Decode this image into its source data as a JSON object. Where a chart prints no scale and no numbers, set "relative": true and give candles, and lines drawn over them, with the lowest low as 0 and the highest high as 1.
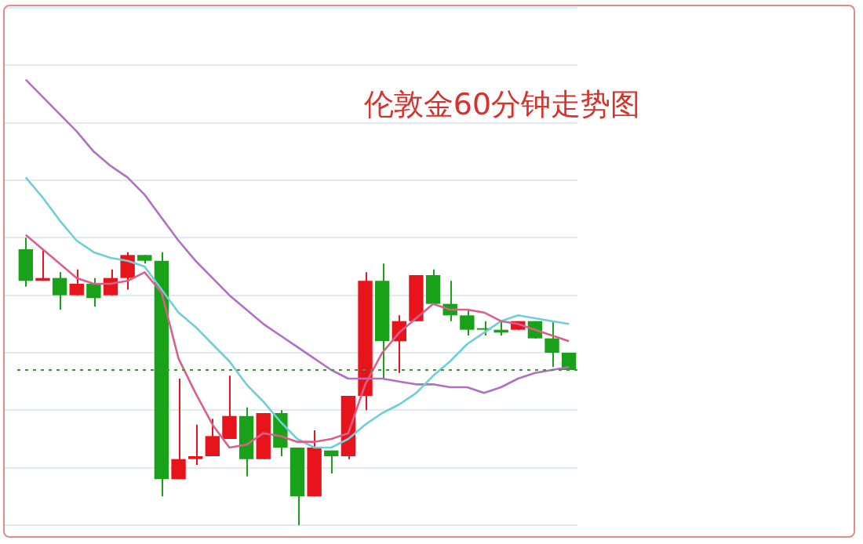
{
  "chart_data": {
    "type": "candlestick",
    "title": "伦敦金60分钟走势图",
    "relative": true,
    "grid": "y",
    "categories": [
      null,
      null,
      null,
      null,
      null,
      null,
      null,
      null,
      null,
      null,
      null,
      null,
      null,
      null,
      null,
      null,
      null,
      null,
      null,
      null,
      null,
      null,
      null,
      null,
      null,
      null,
      null,
      null,
      null,
      null,
      null,
      null,
      null
    ],
    "ohlc": [
      [
        0.96,
        1,
        0.83,
        0.85
      ],
      [
        0.85,
        0.96,
        0.85,
        0.86
      ],
      [
        0.86,
        0.88,
        0.75,
        0.8
      ],
      [
        0.8,
        0.89,
        0.8,
        0.84
      ],
      [
        0.84,
        0.86,
        0.76,
        0.79
      ],
      [
        0.8,
        0.89,
        0.8,
        0.86
      ],
      [
        0.86,
        0.95,
        0.82,
        0.94
      ],
      [
        0.94,
        0.94,
        0.91,
        0.92
      ],
      [
        0.92,
        0.95,
        0.1,
        0.16
      ],
      [
        0.16,
        0.51,
        0.16,
        0.23
      ],
      [
        0.23,
        0.35,
        0.21,
        0.24
      ],
      [
        0.24,
        0.37,
        0.24,
        0.31
      ],
      [
        0.3,
        0.52,
        0.3,
        0.38
      ],
      [
        0.38,
        0.41,
        0.17,
        0.23
      ],
      [
        0.23,
        0.39,
        0.23,
        0.39
      ],
      [
        0.39,
        0.4,
        0.24,
        0.27
      ],
      [
        0.27,
        0.27,
        0,
        0.1
      ],
      [
        0.1,
        0.33,
        0.1,
        0.27
      ],
      [
        0.26,
        0.26,
        0.18,
        0.24
      ],
      [
        0.24,
        0.45,
        0.23,
        0.45
      ],
      [
        0.45,
        0.88,
        0.4,
        0.85
      ],
      [
        0.85,
        0.91,
        0.51,
        0.64
      ],
      [
        0.64,
        0.73,
        0.53,
        0.71
      ],
      [
        0.71,
        0.87,
        0.71,
        0.87
      ],
      [
        0.87,
        0.89,
        0.77,
        0.77
      ],
      [
        0.77,
        0.85,
        0.71,
        0.73
      ],
      [
        0.73,
        0.75,
        0.66,
        0.68
      ],
      [
        0.68,
        0.71,
        0.66,
        0.68
      ],
      [
        0.68,
        0.71,
        0.66,
        0.67
      ],
      [
        0.68,
        0.71,
        0.68,
        0.71
      ],
      [
        0.71,
        0.71,
        0.65,
        0.65
      ],
      [
        0.65,
        0.71,
        0.55,
        0.6
      ],
      [
        0.6,
        0.6,
        0.54,
        0.54
      ]
    ],
    "colors": [
      "#1aa11a",
      "#e8141b",
      "#1aa11a",
      "#e8141b",
      "#1aa11a",
      "#e8141b",
      "#e8141b",
      "#1aa11a",
      "#1aa11a",
      "#e8141b",
      "#e8141b",
      "#e8141b",
      "#e8141b",
      "#1aa11a",
      "#e8141b",
      "#1aa11a",
      "#1aa11a",
      "#e8141b",
      "#1aa11a",
      "#e8141b",
      "#e8141b",
      "#1aa11a",
      "#e8141b",
      "#e8141b",
      "#1aa11a",
      "#1aa11a",
      "#1aa11a",
      "#1aa11a",
      "#1aa11a",
      "#e8141b",
      "#1aa11a",
      "#1aa11a",
      "#1aa11a"
    ],
    "series": [
      {
        "type": "line",
        "color": "#d9608a",
        "values": [
          1.01,
          0.96,
          0.91,
          0.86,
          0.84,
          0.84,
          0.85,
          0.88,
          0.81,
          0.58,
          0.46,
          0.35,
          0.27,
          0.28,
          0.32,
          0.31,
          0.29,
          0.29,
          0.3,
          0.32,
          0.49,
          0.6,
          0.67,
          0.72,
          0.77,
          0.75,
          0.75,
          0.74,
          0.71,
          0.7,
          0.68,
          0.66,
          0.64
        ]
      },
      {
        "type": "line",
        "color": "#6fcfd6",
        "values": [
          1.21,
          1.14,
          1.06,
          0.99,
          0.95,
          0.93,
          0.92,
          0.9,
          0.82,
          0.74,
          0.69,
          0.63,
          0.57,
          0.49,
          0.43,
          0.36,
          0.3,
          0.27,
          0.27,
          0.3,
          0.35,
          0.39,
          0.42,
          0.46,
          0.52,
          0.57,
          0.63,
          0.67,
          0.71,
          0.73,
          0.72,
          0.71,
          0.7
        ]
      },
      {
        "type": "line",
        "color": "#b071c4",
        "values": [
          1.55,
          1.49,
          1.43,
          1.37,
          1.3,
          1.25,
          1.21,
          1.15,
          1.07,
          0.99,
          0.92,
          0.86,
          0.8,
          0.75,
          0.7,
          0.66,
          0.62,
          0.58,
          0.54,
          0.51,
          0.51,
          0.51,
          0.5,
          0.49,
          0.49,
          0.48,
          0.48,
          0.46,
          0.48,
          0.51,
          0.53,
          0.54,
          0.55
        ]
      }
    ],
    "ref_lines": [
      {
        "axis": "y",
        "value": 0.54,
        "color": "#3a9a3a",
        "line_style": "dotted"
      }
    ]
  }
}
